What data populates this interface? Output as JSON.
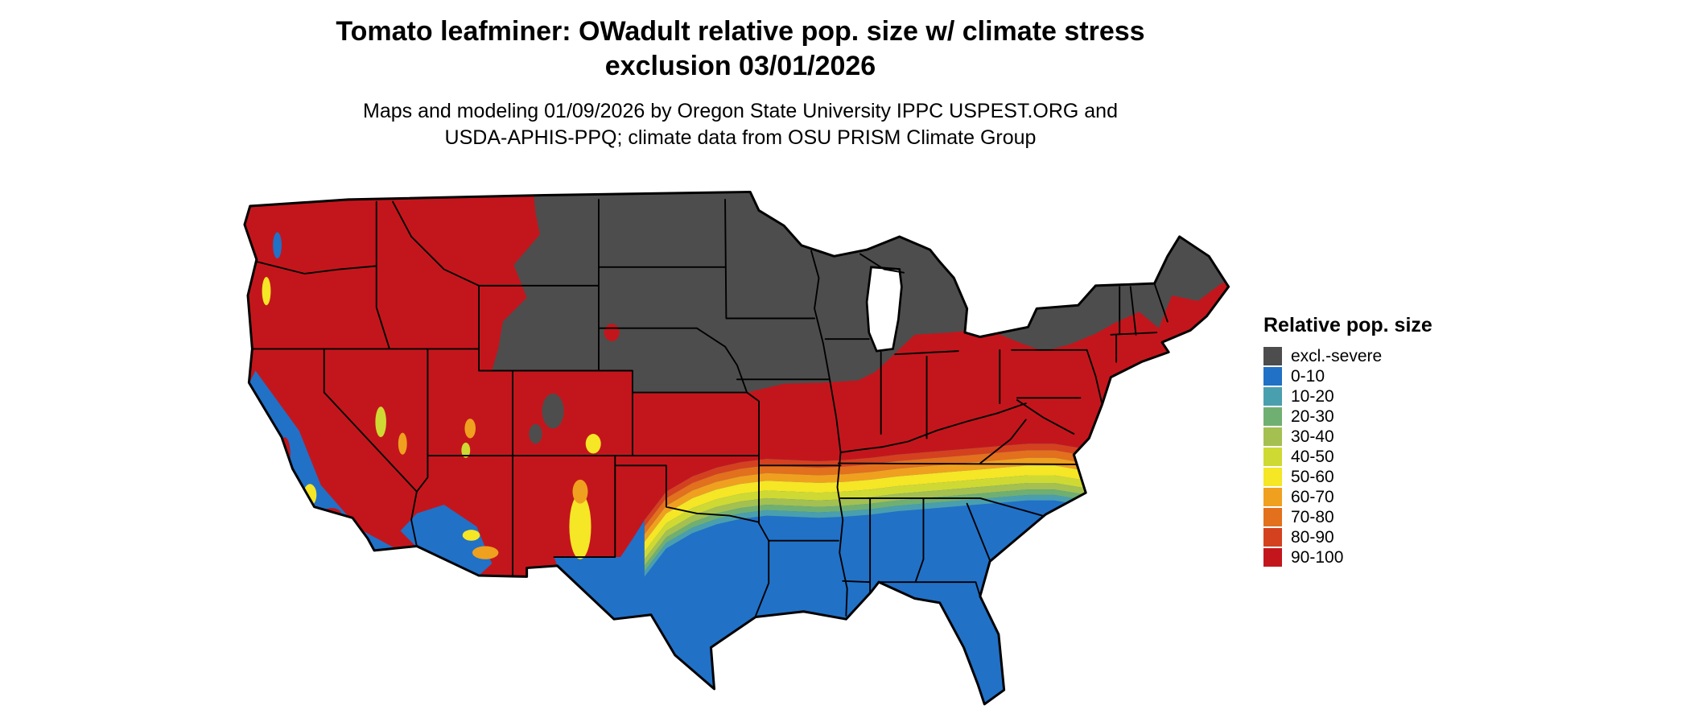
{
  "title": {
    "line1": "Tomato leafminer: OWadult relative pop. size w/ climate stress",
    "line2": "exclusion 03/01/2026"
  },
  "subtitle": {
    "line1": "Maps and modeling 01/09/2026 by Oregon State University IPPC USPEST.ORG and",
    "line2": "USDA-APHIS-PPQ; climate data from OSU PRISM Climate Group"
  },
  "legend": {
    "title": "Relative pop. size",
    "items": [
      {
        "label": "excl.-severe",
        "color": "#4d4d4d"
      },
      {
        "label": "0-10",
        "color": "#2171c7"
      },
      {
        "label": "10-20",
        "color": "#4a9fae"
      },
      {
        "label": "20-30",
        "color": "#70af72"
      },
      {
        "label": "30-40",
        "color": "#a3c051"
      },
      {
        "label": "40-50",
        "color": "#cfd933"
      },
      {
        "label": "50-60",
        "color": "#f5e626"
      },
      {
        "label": "60-70",
        "color": "#f0a01f"
      },
      {
        "label": "70-80",
        "color": "#e2701d"
      },
      {
        "label": "80-90",
        "color": "#d4411f"
      },
      {
        "label": "90-100",
        "color": "#c3161c"
      }
    ]
  }
}
